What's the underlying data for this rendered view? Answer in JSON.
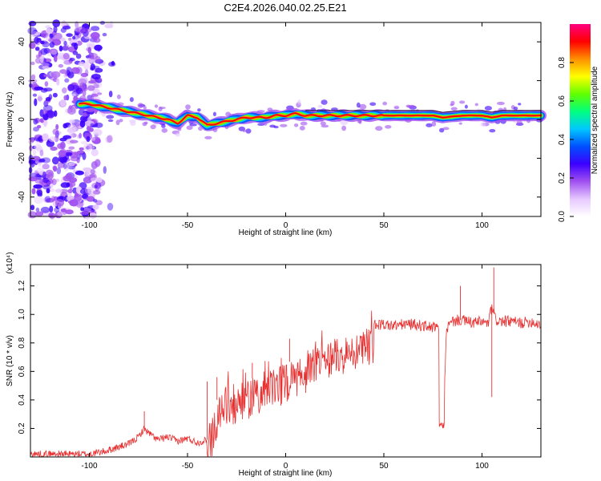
{
  "page": {
    "title": "C2E4.2026.040.02.25.E21"
  },
  "chart_data": [
    {
      "type": "heatmap",
      "title": "C2E4.2026.040.02.25.E21",
      "xlabel": "Height of straight line (km)",
      "ylabel": "Frequency (Hz)",
      "xlim": [
        -130,
        130
      ],
      "ylim": [
        -50,
        50
      ],
      "x_ticks": [
        -100,
        -50,
        0,
        50,
        100
      ],
      "y_ticks": [
        -40,
        -20,
        0,
        20,
        40
      ],
      "colorbar": {
        "label": "Normalized spectral amplitude",
        "range": [
          0,
          1
        ],
        "ticks": [
          0.0,
          0.2,
          0.4,
          0.6,
          0.8
        ],
        "tick_labels": [
          "0.0",
          "0.2",
          "0.4",
          "0.6",
          "0.8"
        ],
        "colors": [
          "#ffffff",
          "#e6c8ff",
          "#a050f0",
          "#3c00ff",
          "#0050ff",
          "#00c8ff",
          "#00ff80",
          "#60ff00",
          "#ffff00",
          "#ff9000",
          "#ff0000",
          "#ff0080"
        ]
      },
      "ridge": {
        "x": [
          -105,
          -100,
          -95,
          -90,
          -85,
          -80,
          -75,
          -70,
          -65,
          -60,
          -55,
          -50,
          -45,
          -40,
          -35,
          -30,
          -25,
          -20,
          -15,
          -10,
          -5,
          0,
          5,
          10,
          20,
          30,
          50,
          75,
          80,
          90,
          100,
          105,
          110,
          130
        ],
        "y": [
          8,
          8,
          7,
          6,
          5,
          4,
          3,
          2,
          1,
          0,
          -2,
          2,
          1,
          -3,
          -2,
          -1,
          0,
          1,
          1,
          1,
          2,
          2,
          3,
          2,
          2,
          2,
          2,
          2,
          1,
          2,
          2,
          1,
          2,
          2
        ]
      },
      "noise_region_x": [
        -130,
        -95
      ]
    },
    {
      "type": "line",
      "xlabel": "Height of straight line (km)",
      "ylabel": "SNR (10 * v/v)",
      "exponent_label": "(x10⁴)",
      "xlim": [
        -130,
        130
      ],
      "ylim": [
        0,
        1.35
      ],
      "x_ticks": [
        -100,
        -50,
        0,
        50,
        100
      ],
      "y_ticks": [
        0.2,
        0.4,
        0.6,
        0.8,
        1.0,
        1.2
      ],
      "y_tick_labels": [
        "0.2",
        "0.4",
        "0.6",
        "0.8",
        "1.0",
        "1.2"
      ],
      "color": "#e83030",
      "envelope": {
        "x": [
          -130,
          -100,
          -92,
          -85,
          -80,
          -75,
          -72,
          -70,
          -65,
          -60,
          -55,
          -50,
          -45,
          -40,
          -37,
          -34,
          -30,
          -25,
          -20,
          -15,
          -10,
          -5,
          0,
          5,
          10,
          15,
          20,
          25,
          30,
          35,
          40,
          45,
          50,
          55,
          60,
          65,
          70,
          75,
          78,
          80,
          82,
          85,
          88,
          90,
          95,
          100,
          103,
          105,
          107,
          110,
          115,
          120,
          125,
          130
        ],
        "y": [
          0.02,
          0.02,
          0.04,
          0.07,
          0.09,
          0.14,
          0.2,
          0.17,
          0.12,
          0.14,
          0.11,
          0.13,
          0.1,
          0.12,
          0.3,
          0.45,
          0.5,
          0.52,
          0.54,
          0.56,
          0.6,
          0.63,
          0.66,
          0.68,
          0.72,
          0.77,
          0.82,
          0.85,
          0.87,
          0.9,
          0.91,
          0.93,
          0.93,
          0.92,
          0.93,
          0.93,
          0.92,
          0.91,
          0.9,
          0.22,
          0.9,
          0.95,
          0.96,
          0.96,
          0.94,
          0.95,
          0.93,
          1.05,
          0.96,
          0.95,
          0.95,
          0.94,
          0.95,
          0.93
        ]
      },
      "spikes": [
        {
          "x": -72,
          "y": 0.32
        },
        {
          "x": -40,
          "y": 0.53
        },
        {
          "x": -35,
          "y": 0.56
        },
        {
          "x": -17,
          "y": 0.66
        },
        {
          "x": 2,
          "y": 0.83
        },
        {
          "x": 89,
          "y": 1.2
        },
        {
          "x": 106,
          "y": 1.33
        },
        {
          "x": 105,
          "y": 0.42
        }
      ]
    }
  ]
}
